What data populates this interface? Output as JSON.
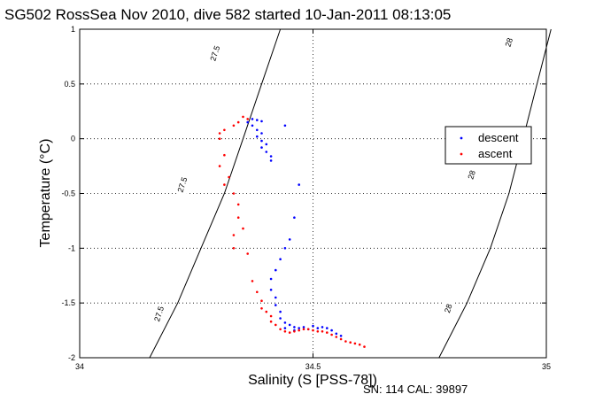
{
  "chart_data": {
    "type": "scatter",
    "title": "SG502 RossSea Nov 2010, dive 582 started 10-Jan-2011 08:13:05",
    "xlabel": "Salinity (S [PSS-78])",
    "ylabel": "Temperature (°C)",
    "xlim": [
      34,
      35
    ],
    "ylim": [
      -2,
      1
    ],
    "x_ticks": [
      "34",
      "34.5",
      "35"
    ],
    "y_ticks": [
      "1",
      "0.5",
      "0",
      "-0.5",
      "-1",
      "-1.5",
      "-2"
    ],
    "grid": true,
    "legend_position": "right",
    "footer": "SN: 114  CAL: 39897",
    "contours": [
      {
        "label": "27.5",
        "points": [
          [
            34.15,
            -2.0
          ],
          [
            34.21,
            -1.5
          ],
          [
            34.26,
            -1.0
          ],
          [
            34.31,
            -0.5
          ],
          [
            34.35,
            0.0
          ],
          [
            34.39,
            0.5
          ],
          [
            34.43,
            1.0
          ]
        ]
      },
      {
        "label": "28",
        "points": [
          [
            34.77,
            -2.0
          ],
          [
            34.83,
            -1.5
          ],
          [
            34.88,
            -1.0
          ],
          [
            34.92,
            -0.5
          ],
          [
            34.95,
            0.0
          ],
          [
            34.98,
            0.5
          ],
          [
            35.01,
            1.0
          ]
        ]
      }
    ],
    "contour_label_positions": [
      {
        "contour": 0,
        "s": 34.29,
        "t": 0.78
      },
      {
        "contour": 0,
        "s": 34.22,
        "t": -0.42
      },
      {
        "contour": 0,
        "s": 34.17,
        "t": -1.6
      },
      {
        "contour": 1,
        "s": 34.92,
        "t": 0.88
      },
      {
        "contour": 1,
        "s": 34.84,
        "t": -0.33
      },
      {
        "contour": 1,
        "s": 34.79,
        "t": -1.55
      }
    ],
    "series": [
      {
        "name": "descent",
        "color": "#0000ff",
        "points": [
          [
            34.37,
            0.18
          ],
          [
            34.38,
            0.17
          ],
          [
            34.36,
            0.15
          ],
          [
            34.39,
            0.16
          ],
          [
            34.37,
            0.12
          ],
          [
            34.38,
            0.08
          ],
          [
            34.39,
            0.05
          ],
          [
            34.38,
            0.02
          ],
          [
            34.39,
            -0.02
          ],
          [
            34.4,
            -0.05
          ],
          [
            34.39,
            -0.08
          ],
          [
            34.4,
            -0.12
          ],
          [
            34.41,
            -0.16
          ],
          [
            34.44,
            0.12
          ],
          [
            34.41,
            -0.2
          ],
          [
            34.47,
            -0.42
          ],
          [
            34.46,
            -0.72
          ],
          [
            34.45,
            -0.92
          ],
          [
            34.44,
            -1.0
          ],
          [
            34.43,
            -1.1
          ],
          [
            34.42,
            -1.2
          ],
          [
            34.41,
            -1.28
          ],
          [
            34.41,
            -1.38
          ],
          [
            34.42,
            -1.45
          ],
          [
            34.42,
            -1.52
          ],
          [
            34.43,
            -1.58
          ],
          [
            34.43,
            -1.64
          ],
          [
            34.44,
            -1.68
          ],
          [
            34.45,
            -1.7
          ],
          [
            34.46,
            -1.72
          ],
          [
            34.48,
            -1.72
          ],
          [
            34.5,
            -1.71
          ],
          [
            34.52,
            -1.72
          ],
          [
            34.53,
            -1.73
          ],
          [
            34.54,
            -1.75
          ],
          [
            34.55,
            -1.78
          ],
          [
            34.56,
            -1.8
          ],
          [
            34.44,
            -1.73
          ],
          [
            34.46,
            -1.75
          ],
          [
            34.47,
            -1.73
          ],
          [
            34.49,
            -1.74
          ],
          [
            34.51,
            -1.73
          ]
        ]
      },
      {
        "name": "ascent",
        "color": "#ff0000",
        "points": [
          [
            34.35,
            0.2
          ],
          [
            34.36,
            0.18
          ],
          [
            34.34,
            0.15
          ],
          [
            34.33,
            0.12
          ],
          [
            34.31,
            0.08
          ],
          [
            34.3,
            0.05
          ],
          [
            34.3,
            0.0
          ],
          [
            34.31,
            -0.15
          ],
          [
            34.3,
            -0.25
          ],
          [
            34.32,
            -0.35
          ],
          [
            34.31,
            -0.42
          ],
          [
            34.33,
            -0.5
          ],
          [
            34.34,
            -0.6
          ],
          [
            34.34,
            -0.72
          ],
          [
            34.35,
            -0.82
          ],
          [
            34.33,
            -0.88
          ],
          [
            34.33,
            -1.0
          ],
          [
            34.36,
            -1.05
          ],
          [
            34.37,
            -1.3
          ],
          [
            34.38,
            -1.4
          ],
          [
            34.39,
            -1.48
          ],
          [
            34.39,
            -1.55
          ],
          [
            34.4,
            -1.58
          ],
          [
            34.41,
            -1.62
          ],
          [
            34.41,
            -1.67
          ],
          [
            34.42,
            -1.7
          ],
          [
            34.43,
            -1.74
          ],
          [
            34.44,
            -1.76
          ],
          [
            34.45,
            -1.77
          ],
          [
            34.46,
            -1.76
          ],
          [
            34.47,
            -1.75
          ],
          [
            34.48,
            -1.74
          ],
          [
            34.49,
            -1.74
          ],
          [
            34.5,
            -1.75
          ],
          [
            34.51,
            -1.76
          ],
          [
            34.52,
            -1.76
          ],
          [
            34.53,
            -1.77
          ],
          [
            34.54,
            -1.79
          ],
          [
            34.55,
            -1.81
          ],
          [
            34.56,
            -1.83
          ],
          [
            34.57,
            -1.85
          ],
          [
            34.58,
            -1.86
          ],
          [
            34.59,
            -1.87
          ],
          [
            34.6,
            -1.88
          ],
          [
            34.61,
            -1.9
          ]
        ]
      }
    ]
  }
}
